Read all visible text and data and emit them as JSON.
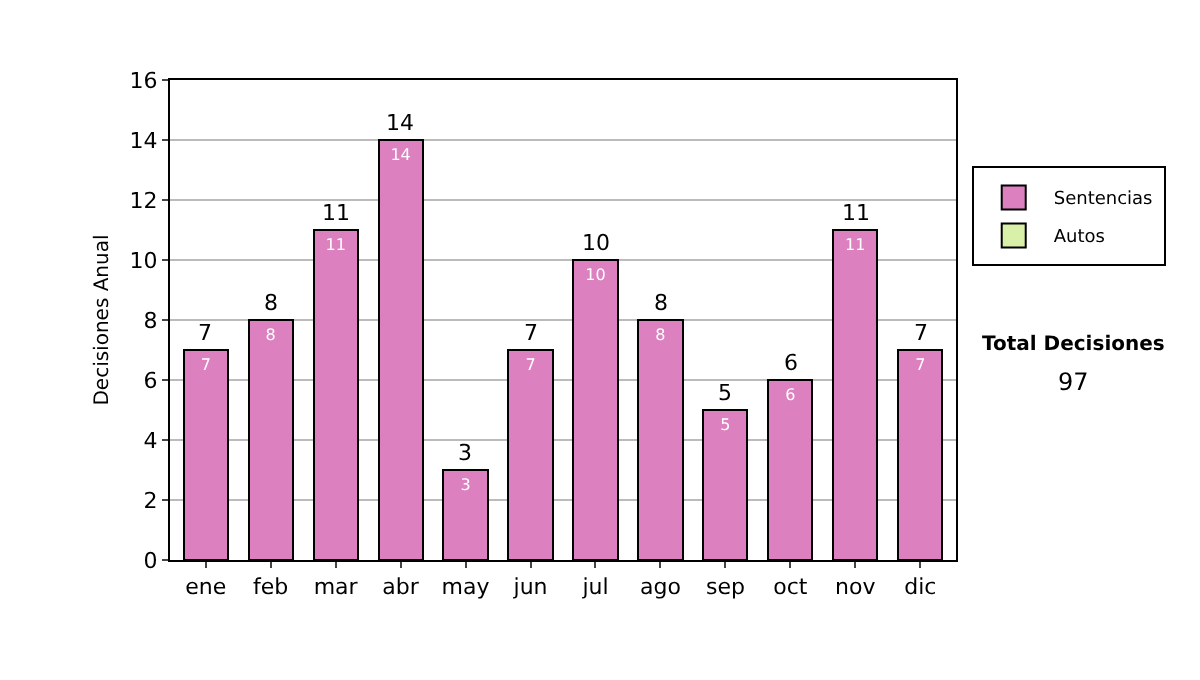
{
  "chart_data": {
    "type": "bar",
    "ylabel": "Decisiones Anual",
    "categories": [
      "ene",
      "feb",
      "mar",
      "abr",
      "may",
      "jun",
      "jul",
      "ago",
      "sep",
      "oct",
      "nov",
      "dic"
    ],
    "stacked": true,
    "series": [
      {
        "name": "Sentencias",
        "color": "#dc80c0",
        "values": [
          7,
          8,
          11,
          14,
          3,
          7,
          10,
          8,
          5,
          6,
          11,
          7
        ],
        "value_labels": [
          "7",
          "8",
          "11",
          "14",
          "3",
          "7",
          "10",
          "8",
          "5",
          "6",
          "11",
          "7"
        ]
      },
      {
        "name": "Autos",
        "color": "#d8f0a8",
        "values": [
          null,
          null,
          null,
          null,
          null,
          null,
          null,
          null,
          null,
          null,
          null,
          null
        ]
      }
    ],
    "totals": [
      "7",
      "8",
      "11",
      "14",
      "3",
      "7",
      "10",
      "8",
      "5",
      "6",
      "11",
      "7"
    ],
    "ylim": [
      0,
      16
    ],
    "yticks": [
      0,
      2,
      4,
      6,
      8,
      10,
      12,
      14,
      16
    ],
    "grid": "y",
    "legend": "right",
    "annotations": [
      "Total Decisiones",
      "97"
    ]
  }
}
